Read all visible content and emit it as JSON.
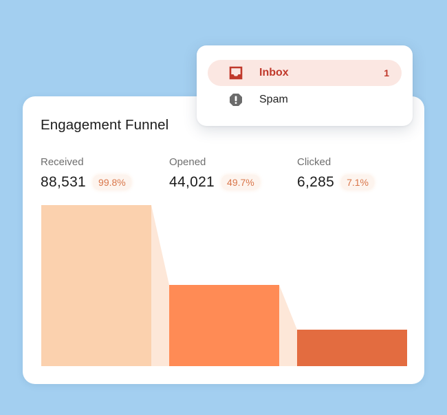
{
  "popup": {
    "items": [
      {
        "label": "Inbox",
        "count": "1",
        "icon": "inbox-icon",
        "active": true
      },
      {
        "label": "Spam",
        "count": "",
        "icon": "spam-alert-icon",
        "active": false
      }
    ],
    "colors": {
      "active_bg": "#fbe7e2",
      "active_text": "#c0392b",
      "spam_icon": "#6b6b6b"
    }
  },
  "card": {
    "title": "Engagement Funnel",
    "stats": [
      {
        "label": "Received",
        "value": "88,531",
        "percent": "99.8%"
      },
      {
        "label": "Opened",
        "value": "44,021",
        "percent": "49.7%"
      },
      {
        "label": "Clicked",
        "value": "6,285",
        "percent": "7.1%"
      }
    ]
  },
  "chart_data": {
    "type": "bar",
    "subtype": "funnel",
    "title": "Engagement Funnel",
    "categories": [
      "Received",
      "Opened",
      "Clicked"
    ],
    "values": [
      88531,
      44021,
      6285
    ],
    "percentages": [
      99.8,
      49.7,
      7.1
    ],
    "colors": [
      "#fbd1ae",
      "#ff8b55",
      "#e36c40"
    ],
    "connector_color": "#fde7d8",
    "xlabel": "",
    "ylabel": "",
    "grid": false,
    "legend": "none"
  }
}
